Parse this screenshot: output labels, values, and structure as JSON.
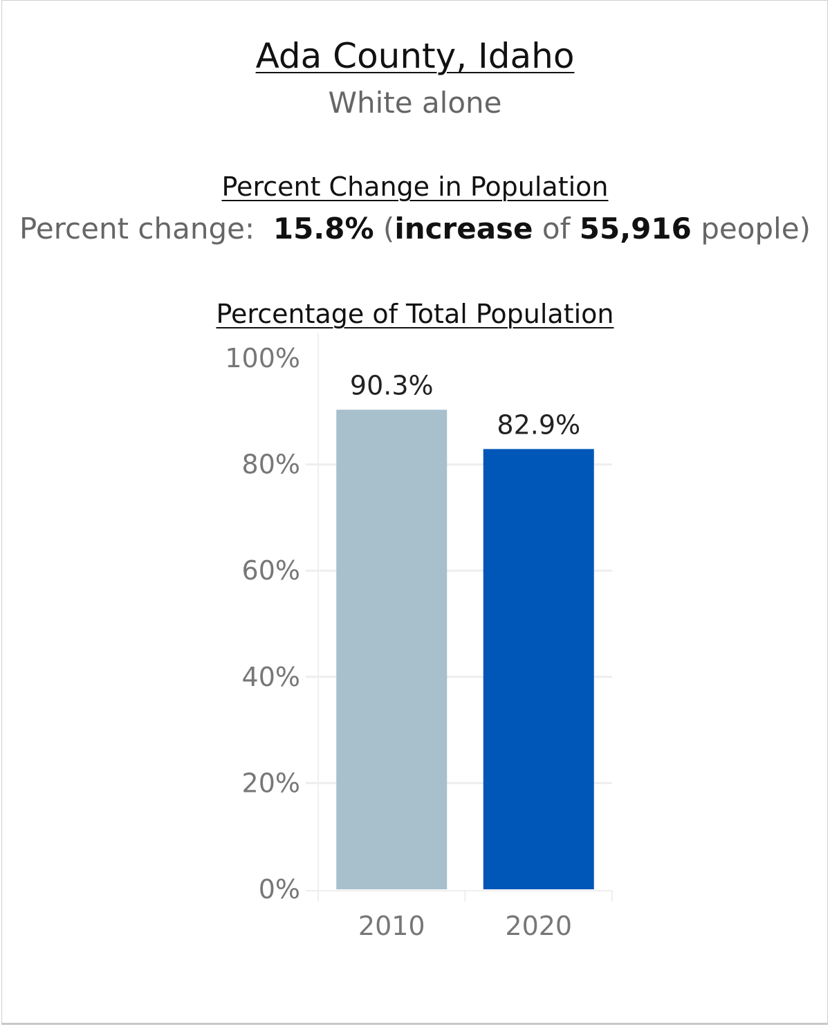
{
  "header": {
    "title": "Ada County, Idaho",
    "subtitle": "White alone"
  },
  "percent_change": {
    "heading": "Percent Change in Population",
    "label": "Percent change:",
    "value": "15.8%",
    "direction": "increase",
    "connector": "of",
    "count": "55,916",
    "unit": "people"
  },
  "chart_heading": "Percentage of Total Population",
  "chart_data": {
    "type": "bar",
    "title": "Percentage of Total Population",
    "categories": [
      "2010",
      "2020"
    ],
    "values": [
      90.3,
      82.9
    ],
    "data_labels": [
      "90.3%",
      "82.9%"
    ],
    "bar_colors": [
      "#a8bfcc",
      "#0057b8"
    ],
    "ylim": [
      0,
      100
    ],
    "yticks": [
      0,
      20,
      40,
      60,
      80,
      100
    ],
    "ytick_labels": [
      "0%",
      "20%",
      "40%",
      "60%",
      "80%",
      "100%"
    ],
    "xlabel": "",
    "ylabel": "",
    "grid": true
  }
}
